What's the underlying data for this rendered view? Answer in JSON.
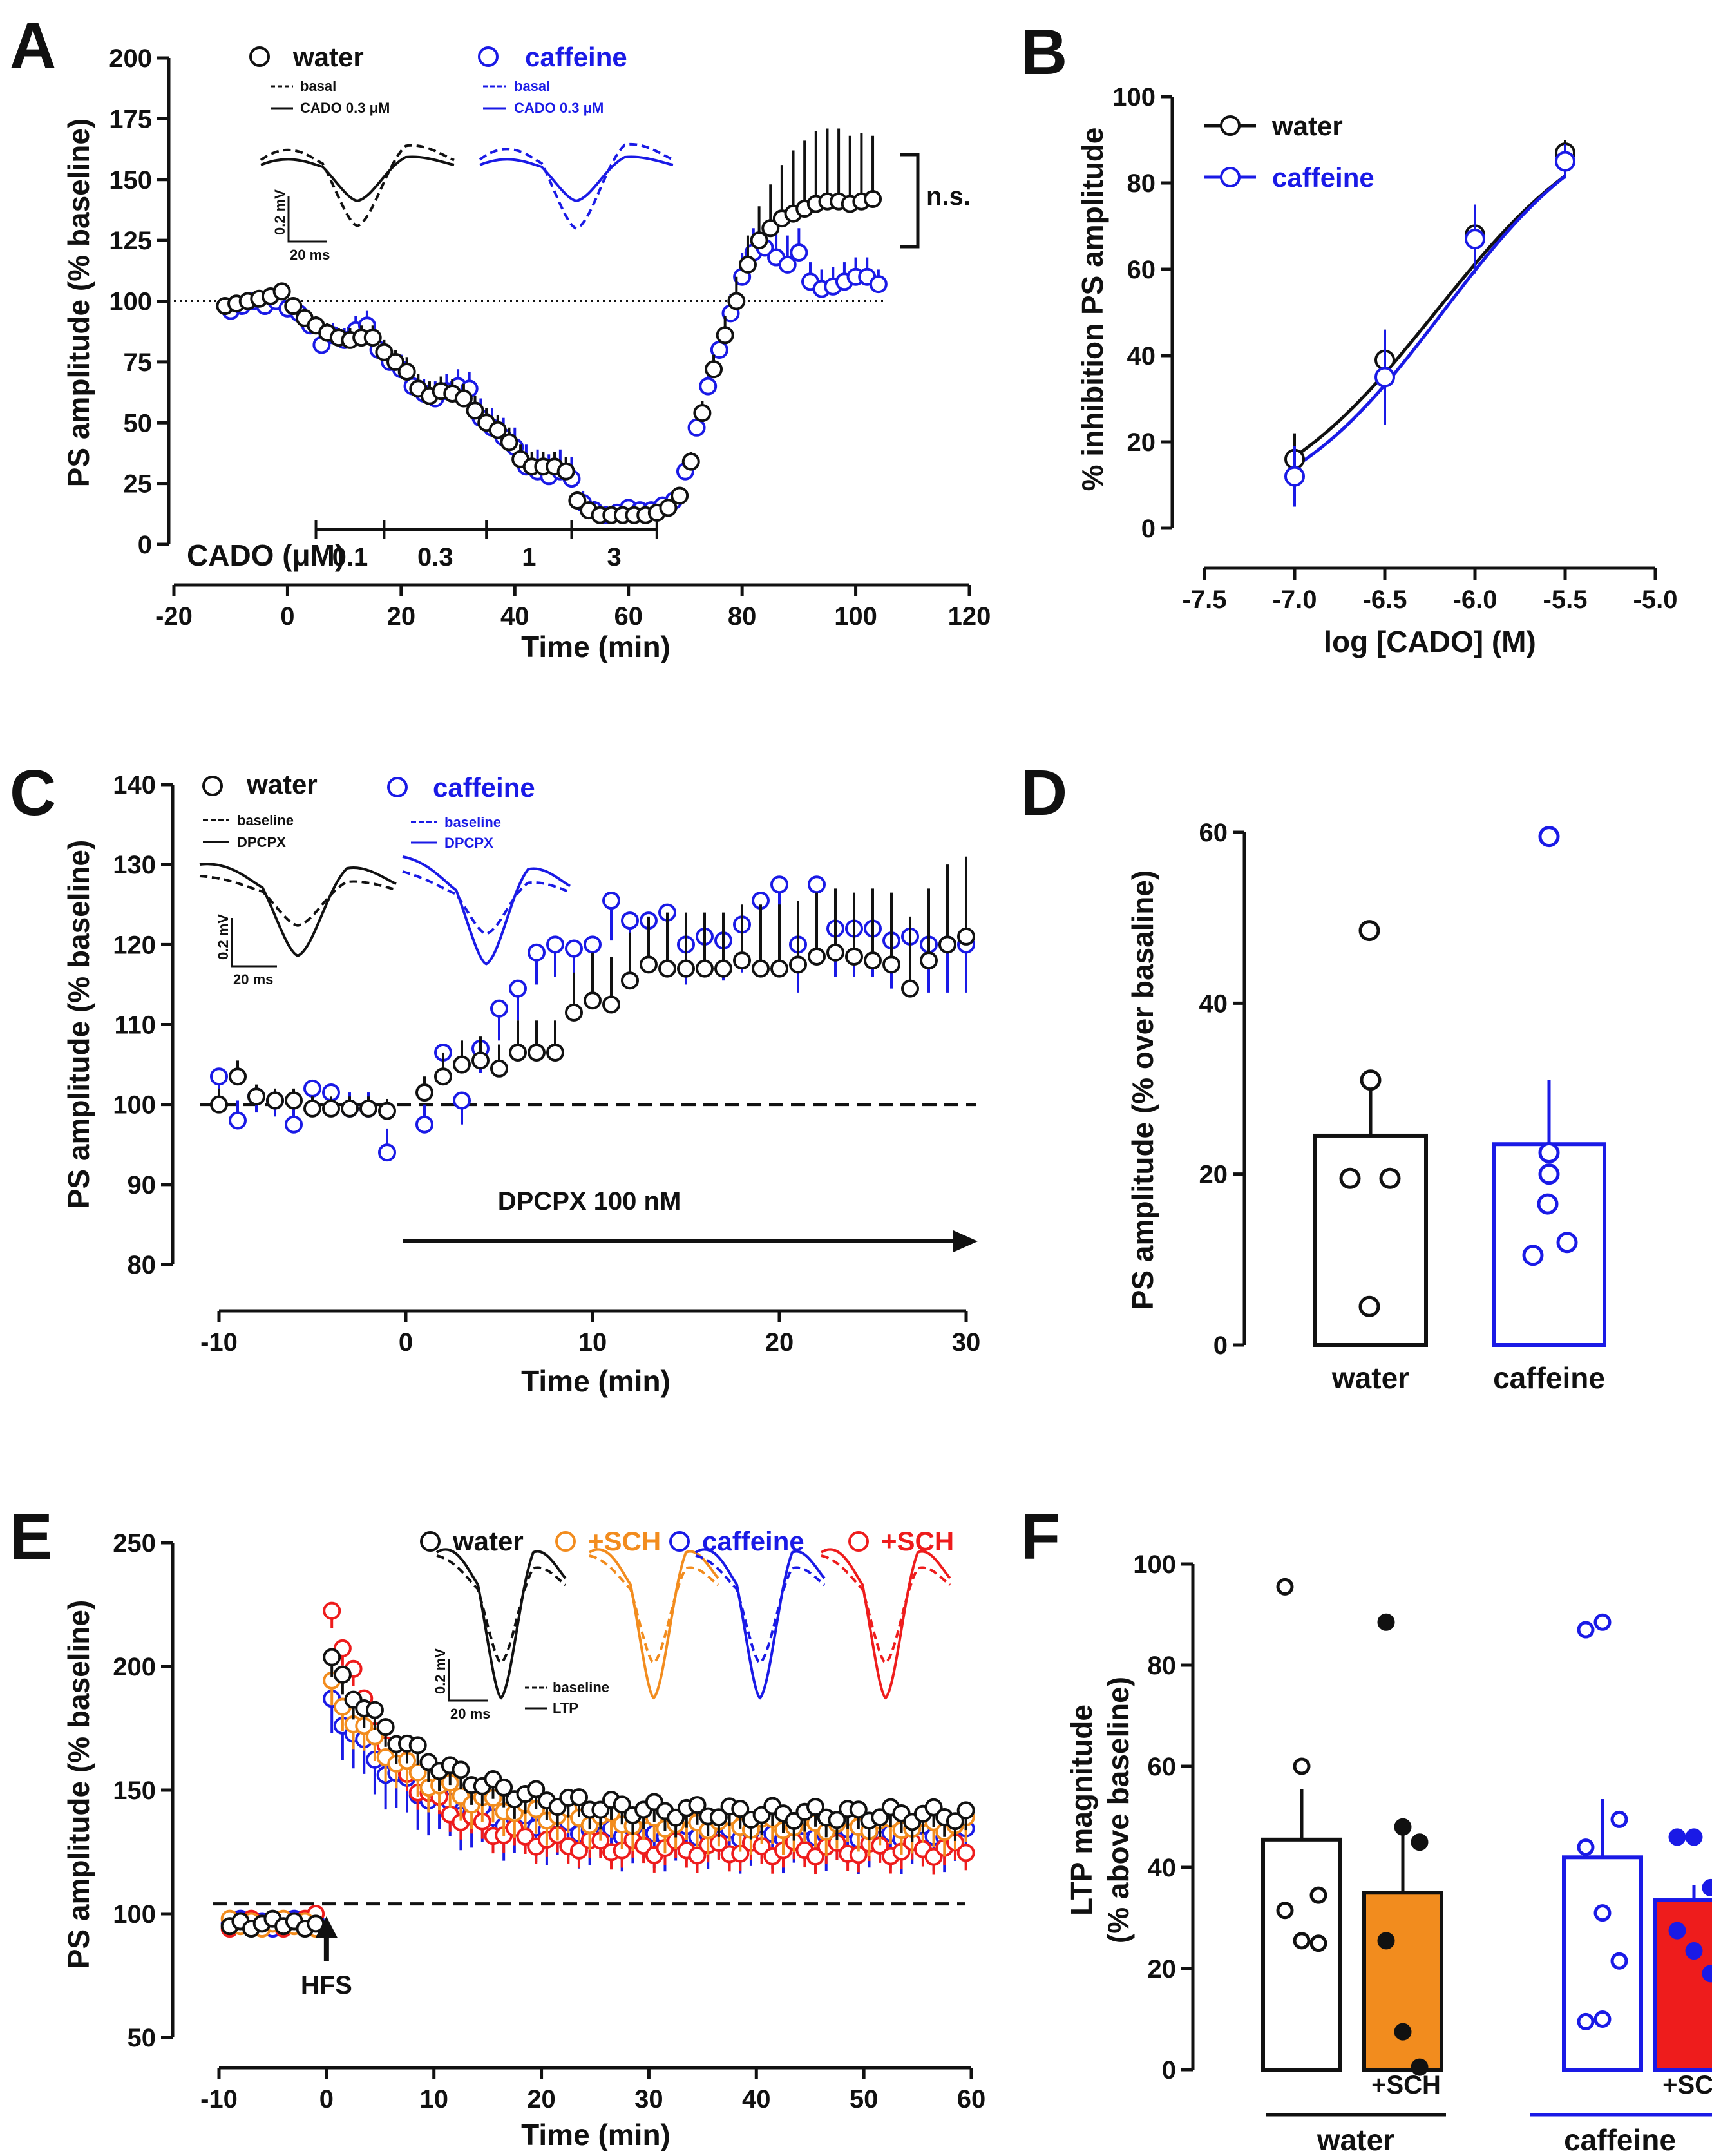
{
  "colors": {
    "water": "#111111",
    "caffeine": "#1a1ae6",
    "sch": "#f28c1e",
    "sch_caf": "#ee1c1c"
  },
  "panels": {
    "A": {
      "letter": "A"
    },
    "B": {
      "letter": "B"
    },
    "C": {
      "letter": "C"
    },
    "D": {
      "letter": "D"
    },
    "E": {
      "letter": "E"
    },
    "F": {
      "letter": "F"
    }
  },
  "chart_data": [
    {
      "id": "A",
      "type": "scatter",
      "title": "",
      "xlabel": "Time (min)",
      "ylabel": "PS amplitude (% baseline)",
      "xlim": [
        -20,
        120
      ],
      "ylim": [
        0,
        200
      ],
      "xticks": [
        "-20",
        "0",
        "20",
        "40",
        "60",
        "80",
        "100",
        "120"
      ],
      "yticks": [
        "0",
        "25",
        "50",
        "75",
        "100",
        "125",
        "150",
        "175",
        "200"
      ],
      "legend": [
        "water",
        "caffeine"
      ],
      "inset_labels": {
        "basal": "basal",
        "cado": "CADO 0.3 μM",
        "scale_v": "0.2 mV",
        "scale_t": "20 ms"
      },
      "annotation": "n.s.",
      "cado_label": "CADO (μM)",
      "cado_steps": [
        "0.1",
        "0.3",
        "1",
        "3"
      ],
      "reference_line": 100,
      "series": [
        {
          "name": "water",
          "x": [
            -11,
            -9,
            -7,
            -5,
            -3,
            -1,
            1,
            3,
            5,
            7,
            9,
            11,
            13,
            15,
            17,
            19,
            21,
            23,
            25,
            27,
            29,
            31,
            33,
            35,
            37,
            39,
            41,
            43,
            45,
            47,
            49,
            51,
            53,
            55,
            57,
            59,
            61,
            63,
            65,
            67,
            69,
            71,
            73,
            75,
            77,
            79,
            81,
            83,
            85,
            87,
            89,
            91,
            93,
            95,
            97,
            99,
            101,
            103
          ],
          "y": [
            98,
            99,
            100,
            101,
            102,
            104,
            98,
            93,
            90,
            87,
            85,
            84,
            85,
            85,
            79,
            75,
            71,
            64,
            61,
            63,
            62,
            60,
            55,
            50,
            47,
            42,
            35,
            32,
            32,
            32,
            30,
            18,
            14,
            12,
            12,
            12,
            12,
            12,
            13,
            15,
            20,
            34,
            54,
            72,
            86,
            100,
            115,
            125,
            130,
            134,
            136,
            138,
            140,
            141,
            141,
            140,
            141,
            142
          ],
          "err": [
            2,
            2,
            2,
            2,
            2,
            2,
            3,
            4,
            4,
            4,
            4,
            5,
            5,
            5,
            5,
            5,
            6,
            6,
            6,
            6,
            6,
            6,
            6,
            6,
            6,
            6,
            6,
            6,
            6,
            6,
            6,
            4,
            3,
            3,
            3,
            3,
            3,
            3,
            3,
            3,
            3,
            4,
            5,
            6,
            8,
            10,
            12,
            14,
            18,
            22,
            26,
            28,
            30,
            30,
            30,
            28,
            28,
            26
          ]
        },
        {
          "name": "caffeine",
          "x": [
            -10,
            -8,
            -6,
            -4,
            -2,
            0,
            2,
            4,
            6,
            8,
            10,
            12,
            14,
            16,
            18,
            20,
            22,
            24,
            26,
            28,
            30,
            32,
            34,
            36,
            38,
            40,
            42,
            44,
            46,
            48,
            50,
            52,
            54,
            56,
            58,
            60,
            62,
            64,
            66,
            68,
            70,
            72,
            74,
            76,
            78,
            80,
            82,
            84,
            86,
            88,
            90,
            92,
            94,
            96,
            98,
            100,
            102,
            104
          ],
          "y": [
            96,
            98,
            100,
            98,
            100,
            97,
            95,
            90,
            82,
            86,
            84,
            88,
            90,
            80,
            75,
            72,
            65,
            62,
            60,
            63,
            65,
            64,
            52,
            48,
            44,
            40,
            32,
            30,
            28,
            30,
            27,
            17,
            14,
            12,
            13,
            15,
            14,
            14,
            16,
            18,
            30,
            48,
            65,
            80,
            95,
            110,
            120,
            122,
            118,
            115,
            120,
            108,
            105,
            106,
            108,
            110,
            110,
            107
          ],
          "err": [
            2,
            2,
            2,
            2,
            3,
            3,
            4,
            5,
            5,
            5,
            5,
            6,
            6,
            6,
            6,
            6,
            6,
            6,
            7,
            7,
            7,
            7,
            8,
            8,
            8,
            8,
            9,
            9,
            9,
            9,
            9,
            5,
            4,
            3,
            3,
            3,
            3,
            3,
            3,
            4,
            5,
            6,
            7,
            8,
            8,
            10,
            10,
            10,
            12,
            12,
            10,
            8,
            8,
            8,
            8,
            8,
            8,
            6
          ]
        }
      ]
    },
    {
      "id": "B",
      "type": "line",
      "title": "",
      "xlabel": "log [CADO] (M)",
      "ylabel": "% inhibition PS amplitude",
      "xlim": [
        -7.5,
        -5.0
      ],
      "ylim": [
        0,
        100
      ],
      "xticks": [
        "-7.5",
        "-7.0",
        "-6.5",
        "-6.0",
        "-5.5",
        "-5.0"
      ],
      "yticks": [
        "0",
        "20",
        "40",
        "60",
        "80",
        "100"
      ],
      "legend": [
        "water",
        "caffeine"
      ],
      "series": [
        {
          "name": "water",
          "x": [
            -7.0,
            -6.5,
            -6.0,
            -5.5
          ],
          "y": [
            16,
            39,
            68,
            87
          ],
          "err": [
            6,
            7,
            6,
            3
          ]
        },
        {
          "name": "caffeine",
          "x": [
            -7.0,
            -6.5,
            -6.0,
            -5.5
          ],
          "y": [
            12,
            35,
            67,
            85
          ],
          "err": [
            7,
            11,
            8,
            4
          ]
        }
      ],
      "fits": [
        {
          "name": "water",
          "bottom": 0,
          "top": 100,
          "logEC50": -6.22,
          "hill": 0.9
        },
        {
          "name": "caffeine",
          "bottom": 0,
          "top": 100,
          "logEC50": -6.18,
          "hill": 0.95
        }
      ]
    },
    {
      "id": "C",
      "type": "scatter",
      "title": "",
      "xlabel": "Time (min)",
      "ylabel": "PS amplitude (% baseline)",
      "xlim": [
        -10,
        30
      ],
      "ylim": [
        80,
        140
      ],
      "xticks": [
        "-10",
        "0",
        "10",
        "20",
        "30"
      ],
      "yticks": [
        "80",
        "90",
        "100",
        "110",
        "120",
        "130",
        "140"
      ],
      "legend": [
        "water",
        "caffeine"
      ],
      "inset_labels": {
        "baseline": "baseline",
        "drug": "DPCPX",
        "scale_v": "0.2 mV",
        "scale_t": "20 ms"
      },
      "drug_label": "DPCPX 100 nM",
      "reference_line": 100,
      "series": [
        {
          "name": "water",
          "x": [
            -10,
            -9,
            -8,
            -7,
            -6,
            -5,
            -4,
            -3,
            -2,
            -1,
            1,
            2,
            3,
            4,
            5,
            6,
            7,
            8,
            9,
            10,
            11,
            12,
            13,
            14,
            15,
            16,
            17,
            18,
            19,
            20,
            21,
            22,
            23,
            24,
            25,
            26,
            27,
            28,
            29,
            30
          ],
          "y": [
            100,
            103.5,
            101,
            100.5,
            100.5,
            99.5,
            99.5,
            99.5,
            99.5,
            99.2,
            101.5,
            103.5,
            105,
            105.5,
            104.5,
            106.5,
            106.5,
            106.5,
            111.5,
            113,
            112.5,
            115.5,
            117.5,
            117,
            117,
            117,
            117,
            118,
            117,
            117,
            117.5,
            118.5,
            119,
            118.5,
            118,
            117.5,
            114.5,
            118,
            120,
            121
          ],
          "err": [
            2,
            2,
            1.5,
            1.5,
            1.5,
            1.5,
            1.5,
            1.5,
            1.5,
            1.5,
            2,
            3,
            3,
            3,
            3,
            4,
            4,
            4,
            5,
            6,
            6,
            6,
            6,
            7,
            7,
            7,
            7,
            7,
            8,
            8,
            8,
            8,
            8,
            8,
            9,
            9,
            9,
            9,
            10,
            10
          ]
        },
        {
          "name": "caffeine",
          "x": [
            -10,
            -9,
            -8,
            -7,
            -6,
            -5,
            -4,
            -3,
            -2,
            -1,
            1,
            2,
            3,
            4,
            5,
            6,
            7,
            8,
            9,
            10,
            11,
            12,
            13,
            14,
            15,
            16,
            17,
            18,
            19,
            20,
            21,
            22,
            23,
            24,
            25,
            26,
            27,
            28,
            29,
            30
          ],
          "y": [
            103.5,
            98,
            101,
            100.5,
            97.5,
            102,
            101.5,
            99.5,
            99.5,
            94,
            97.5,
            106.5,
            100.5,
            107,
            112,
            114.5,
            119,
            120,
            119.5,
            120,
            125.5,
            123,
            123,
            124,
            120,
            121,
            120.5,
            122.5,
            125.5,
            127.5,
            120,
            127.5,
            122,
            122,
            122,
            120.5,
            121,
            120,
            120,
            120
          ],
          "err": [
            2,
            2.5,
            2,
            2,
            2.5,
            2,
            2,
            2,
            2,
            3,
            2.5,
            3,
            3,
            3,
            4,
            4,
            4,
            4,
            5,
            5,
            5,
            5,
            5,
            5,
            5,
            5,
            5,
            6,
            6,
            6,
            6,
            6,
            6,
            6,
            6,
            6,
            6,
            6,
            6,
            6
          ]
        }
      ]
    },
    {
      "id": "D",
      "type": "bar",
      "title": "",
      "xlabel": "",
      "ylabel": "PS amplitude (% over basaline)",
      "ylim": [
        0,
        60
      ],
      "yticks": [
        "0",
        "20",
        "40",
        "60"
      ],
      "categories": [
        "water",
        "caffeine"
      ],
      "values": [
        24.5,
        23.5
      ],
      "errors": [
        6.5,
        7.5
      ],
      "points": [
        [
          48.5,
          31,
          19.5,
          19.5,
          4.5
        ],
        [
          59.5,
          22.5,
          20,
          16.5,
          12,
          10.5
        ]
      ]
    },
    {
      "id": "E",
      "type": "scatter",
      "title": "",
      "xlabel": "Time (min)",
      "ylabel": "PS amplitude (% baseline)",
      "xlim": [
        -10,
        60
      ],
      "ylim": [
        50,
        250
      ],
      "xticks": [
        "-10",
        "0",
        "10",
        "20",
        "30",
        "40",
        "50",
        "60"
      ],
      "yticks": [
        "50",
        "100",
        "150",
        "200",
        "250"
      ],
      "legend": [
        "water",
        "+SCH",
        "caffeine",
        "+SCH"
      ],
      "inset_labels": {
        "baseline": "baseline",
        "ltp": "LTP",
        "scale_v": "0.2 mV",
        "scale_t": "20 ms"
      },
      "stimulus_label": "HFS",
      "reference_line": 104,
      "series": [
        {
          "name": "water",
          "decay": {
            "plateau": 140,
            "peak": 205,
            "tau": 9
          },
          "err": 8
        },
        {
          "name": "+SCH (water)",
          "decay": {
            "plateau": 136,
            "peak": 195,
            "tau": 8
          },
          "err": 10
        },
        {
          "name": "caffeine",
          "decay": {
            "plateau": 133,
            "peak": 190,
            "tau": 7
          },
          "err": 14
        },
        {
          "name": "+SCH (caffeine)",
          "decay": {
            "plateau": 126,
            "peak": 233,
            "tau": 6
          },
          "err": 7
        }
      ]
    },
    {
      "id": "F",
      "type": "bar",
      "title": "",
      "xlabel": "",
      "ylabel": "LTP magnitude (% above baseline)",
      "ylim": [
        0,
        100
      ],
      "yticks": [
        "0",
        "20",
        "40",
        "60",
        "80",
        "100"
      ],
      "categories": [
        "water",
        "+SCH",
        "caffeine",
        "+SCH"
      ],
      "group_labels": [
        "water",
        "caffeine"
      ],
      "values": [
        45.5,
        35,
        42,
        33.5
      ],
      "errors": [
        10,
        12,
        11.5,
        3
      ],
      "points": [
        [
          95.5,
          60,
          34.5,
          31.5,
          25.5,
          25
        ],
        [
          88.5,
          48,
          45,
          25.5,
          7.5,
          0.5
        ],
        [
          87,
          88.5,
          49.5,
          44,
          31,
          21.5,
          9.5,
          10
        ],
        [
          46,
          46,
          36,
          27.5,
          23.5,
          19
        ]
      ]
    }
  ]
}
